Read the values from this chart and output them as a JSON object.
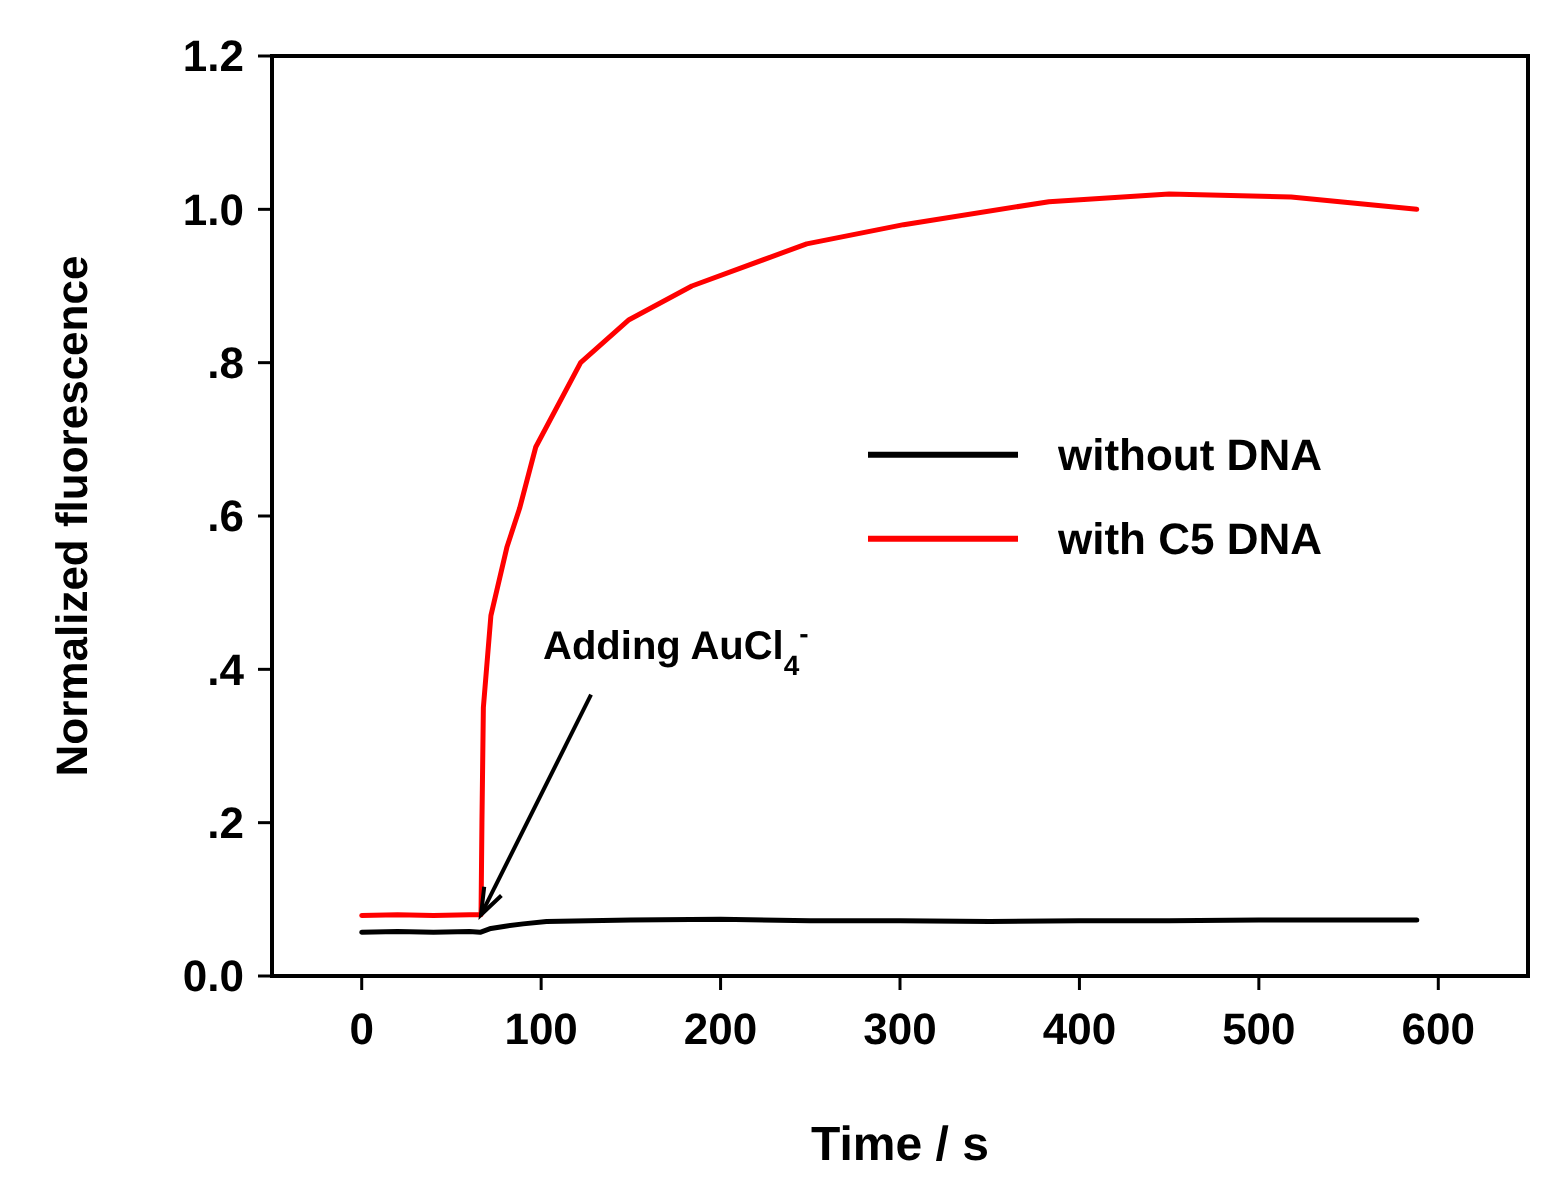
{
  "chart_data": {
    "type": "line",
    "xlabel": "Time / s",
    "ylabel": "Normalized fluorescence",
    "xlim": [
      -50,
      650
    ],
    "ylim": [
      0,
      1.2
    ],
    "xticks": [
      0,
      100,
      200,
      300,
      400,
      500,
      600
    ],
    "yticks": [
      {
        "value": 0,
        "label": "0.0"
      },
      {
        "value": 0.2,
        "label": ".2"
      },
      {
        "value": 0.4,
        "label": ".4"
      },
      {
        "value": 0.6,
        "label": ".6"
      },
      {
        "value": 0.8,
        "label": ".8"
      },
      {
        "value": 1,
        "label": "1.0"
      },
      1.2
    ],
    "legend": "right",
    "grid": false,
    "marker": "none",
    "line_style": "solid",
    "annotations": [
      {
        "text": "Adding AuCl$_{4}$$^{-}$",
        "x": 66.5,
        "y": 0.08
      }
    ],
    "series": [
      {
        "name": "without DNA",
        "color": "#000000",
        "x": [
          0,
          20,
          40,
          60,
          66,
          72,
          80,
          90,
          103,
          150,
          200,
          250,
          300,
          350,
          400,
          450,
          500,
          550,
          588
        ],
        "values": [
          0.057,
          0.058,
          0.057,
          0.058,
          0.057,
          0.062,
          0.065,
          0.068,
          0.071,
          0.073,
          0.074,
          0.072,
          0.072,
          0.071,
          0.072,
          0.072,
          0.073,
          0.073,
          0.073
        ]
      },
      {
        "name": "with C5 DNA",
        "color": "#ff0000",
        "x": [
          0,
          20,
          40,
          60,
          66.5,
          67,
          67.8,
          72,
          81,
          88,
          97,
          122,
          149,
          184,
          248,
          302,
          383,
          450,
          518,
          588
        ],
        "values": [
          0.079,
          0.08,
          0.079,
          0.08,
          0.08,
          0.2,
          0.35,
          0.47,
          0.56,
          0.61,
          0.69,
          0.8,
          0.856,
          0.9,
          0.955,
          0.98,
          1.01,
          1.02,
          1.016,
          1.0
        ]
      }
    ]
  }
}
